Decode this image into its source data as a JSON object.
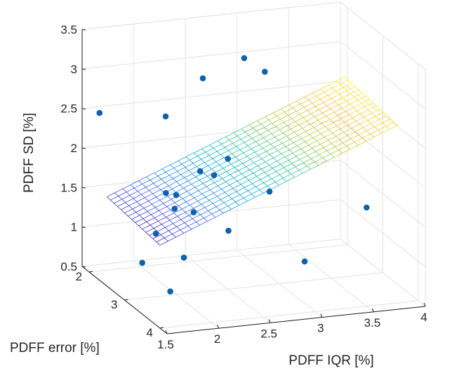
{
  "chart_data": {
    "type": "scatter3d-with-surface",
    "title": "",
    "xlabel": "PDFF IQR [%]",
    "ylabel": "PDFF error [%]",
    "zlabel": "PDFF SD [%]",
    "xlim": [
      1.5,
      4
    ],
    "ylim": [
      1.8,
      4.2
    ],
    "zlim": [
      0.5,
      3.5
    ],
    "xticks": [
      "1.5",
      "2",
      "2.5",
      "3",
      "3.5",
      "4"
    ],
    "yticks": [
      "2",
      "3",
      "4"
    ],
    "zticks": [
      "0.5",
      "1",
      "1.5",
      "2",
      "2.5",
      "3",
      "3.5"
    ],
    "grid": true,
    "colormap": "parula",
    "marker_color": "#0d62ac",
    "surface": {
      "x_range": [
        1.5,
        3.8
      ],
      "y_range": [
        2.5,
        4.0
      ],
      "z_at": {
        "x_min_y_min": 1.63,
        "x_max_y_min": 2.83,
        "x_min_y_max": 1.55,
        "x_max_y_max": 2.75
      },
      "x_divisions": 30,
      "y_divisions": 15
    },
    "points": [
      {
        "x": 1.6,
        "y": 2.0,
        "z": 2.5
      },
      {
        "x": 1.5,
        "y": 3.5,
        "z": 1.15
      },
      {
        "x": 1.6,
        "y": 4.0,
        "z": 0.95
      },
      {
        "x": 1.7,
        "y": 3.3,
        "z": 1.42
      },
      {
        "x": 1.8,
        "y": 3.8,
        "z": 1.28
      },
      {
        "x": 2.0,
        "y": 2.7,
        "z": 2.65
      },
      {
        "x": 1.9,
        "y": 3.0,
        "z": 1.8
      },
      {
        "x": 1.95,
        "y": 3.1,
        "z": 1.63
      },
      {
        "x": 2.0,
        "y": 3.0,
        "z": 1.76
      },
      {
        "x": 2.1,
        "y": 3.2,
        "z": 1.6
      },
      {
        "x": 2.3,
        "y": 3.6,
        "z": 1.48
      },
      {
        "x": 2.3,
        "y": 2.8,
        "z": 1.95
      },
      {
        "x": 2.4,
        "y": 2.9,
        "z": 1.92
      },
      {
        "x": 2.6,
        "y": 2.0,
        "z": 2.8
      },
      {
        "x": 2.5,
        "y": 3.0,
        "z": 2.15
      },
      {
        "x": 2.8,
        "y": 3.3,
        "z": 1.8
      },
      {
        "x": 2.9,
        "y": 4.0,
        "z": 1.15
      },
      {
        "x": 3.0,
        "y": 2.0,
        "z": 3.0
      },
      {
        "x": 3.2,
        "y": 2.0,
        "z": 2.8
      },
      {
        "x": 3.5,
        "y": 4.0,
        "z": 1.75
      }
    ]
  }
}
